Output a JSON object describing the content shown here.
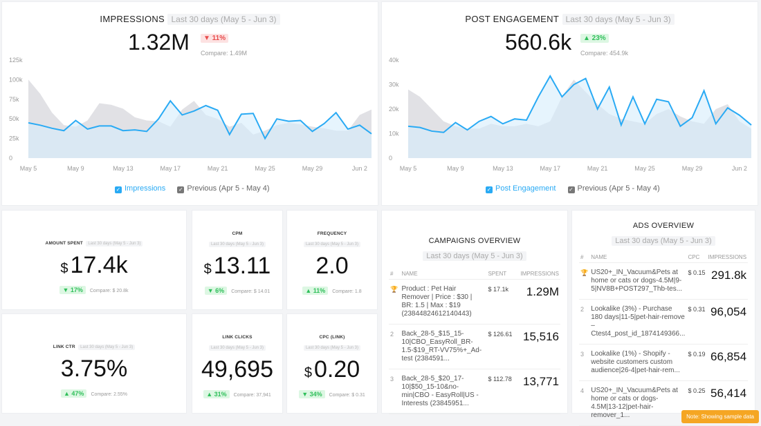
{
  "impressions": {
    "title": "IMPRESSIONS",
    "range": "Last 30 days (May 5 - Jun 3)",
    "value": "1.32M",
    "change": "▼ 11%",
    "compare": "Compare: 1.49M",
    "legend_current": "Impressions",
    "legend_previous": "Previous (Apr 5 - May 4)"
  },
  "engagement": {
    "title": "POST ENGAGEMENT",
    "range": "Last 30 days (May 5 - Jun 3)",
    "value": "560.6k",
    "change": "▲ 23%",
    "compare": "Compare: 454.9k",
    "legend_current": "Post Engagement",
    "legend_previous": "Previous (Apr 5 - May 4)"
  },
  "chart_data": [
    {
      "type": "area",
      "title": "Impressions",
      "ylim": [
        0,
        125000
      ],
      "yticks": [
        "0",
        "25k",
        "50k",
        "75k",
        "100k",
        "125k"
      ],
      "xticks": [
        "May 5",
        "May 9",
        "May 13",
        "May 17",
        "May 21",
        "May 25",
        "May 29",
        "Jun 2"
      ],
      "series": [
        {
          "name": "Impressions",
          "color": "#29aaf4",
          "values": [
            45,
            42,
            38,
            35,
            48,
            37,
            41,
            41,
            35,
            36,
            34,
            50,
            73,
            55,
            60,
            67,
            61,
            30,
            56,
            57,
            25,
            50,
            47,
            48,
            34,
            44,
            58,
            37,
            42,
            31
          ]
        },
        {
          "name": "Previous (Apr 5 - May 4)",
          "color": "#d8d8dc",
          "values": [
            100,
            82,
            58,
            42,
            40,
            48,
            70,
            68,
            63,
            52,
            48,
            47,
            40,
            62,
            73,
            55,
            50,
            40,
            45,
            30,
            35,
            42,
            45,
            43,
            40,
            38,
            35,
            35,
            55,
            62
          ]
        }
      ]
    },
    {
      "type": "area",
      "title": "Post Engagement",
      "ylim": [
        0,
        40000
      ],
      "yticks": [
        "0",
        "10k",
        "20k",
        "30k",
        "40k"
      ],
      "xticks": [
        "May 5",
        "May 9",
        "May 13",
        "May 17",
        "May 21",
        "May 25",
        "May 29",
        "Jun 2"
      ],
      "series": [
        {
          "name": "Post Engagement",
          "color": "#29aaf4",
          "values": [
            13,
            12.5,
            11,
            10.5,
            14.5,
            11.5,
            15,
            17,
            14,
            16,
            15.5,
            25,
            33.5,
            25,
            30,
            32.5,
            20,
            29,
            13.5,
            25,
            14,
            24,
            23,
            13,
            16.5,
            27.5,
            14,
            20.5,
            17.5,
            13.5
          ]
        },
        {
          "name": "Previous (Apr 5 - May 4)",
          "color": "#d8d8dc",
          "values": [
            28,
            25,
            20,
            15,
            13,
            12,
            12,
            14,
            13,
            13,
            14,
            13,
            15,
            25,
            32,
            27,
            22,
            18,
            16,
            15,
            14,
            18,
            20,
            17,
            15,
            14,
            20,
            22,
            15,
            12
          ]
        }
      ]
    }
  ],
  "kpis": [
    {
      "label": "AMOUNT SPENT",
      "range": "Last 30 days (May 5 - Jun 3)",
      "cur": "$",
      "value": "17.4k",
      "change": "▼ 17%",
      "compare": "Compare: $ 20.8k"
    },
    {
      "label": "CPM",
      "range": "Last 30 days (May 5 - Jun 3)",
      "cur": "$",
      "value": "13.11",
      "change": "▼ 6%",
      "compare": "Compare: $ 14.01"
    },
    {
      "label": "FREQUENCY",
      "range": "Last 30 days (May 5 - Jun 3)",
      "cur": "",
      "value": "2.0",
      "change": "▲ 11%",
      "compare": "Compare: 1.8"
    },
    {
      "label": "LINK CTR",
      "range": "Last 30 days (May 5 - Jun 3)",
      "cur": "",
      "value": "3.75%",
      "change": "▲ 47%",
      "compare": "Compare: 2.55%"
    },
    {
      "label": "LINK CLICKS",
      "range": "Last 30 days (May 5 - Jun 3)",
      "cur": "",
      "value": "49,695",
      "change": "▲ 31%",
      "compare": "Compare: 37,941"
    },
    {
      "label": "CPC (LINK)",
      "range": "Last 30 days (May 5 - Jun 3)",
      "cur": "$",
      "value": "0.20",
      "change": "▼ 34%",
      "compare": "Compare: $ 0.31"
    }
  ],
  "campaigns": {
    "title": "CAMPAIGNS OVERVIEW",
    "range": "Last 30 days (May 5 - Jun 3)",
    "headers": [
      "#",
      "NAME",
      "SPENT",
      "IMPRESSIONS"
    ],
    "rows": [
      {
        "rank": "🏆",
        "name": "Product : Pet Hair Remover | Price : $30 | BR: 1.5 | Max : $19 (23844824612140443)",
        "spent": "$ 17.1k",
        "impressions": "1.29M"
      },
      {
        "rank": "2",
        "name": "Back_28-5_$15_15-10|CBO_EasyRoll_BR-1.5-$19_RT-VV75%+_Ad-test (2384591...",
        "spent": "$ 126.61",
        "impressions": "15,516"
      },
      {
        "rank": "3",
        "name": "Back_28-5_$20_17-10|$50_15-10&no-min|CBO - EasyRoll|US - Interests (23845951...",
        "spent": "$ 112.78",
        "impressions": "13,771"
      }
    ]
  },
  "ads": {
    "title": "ADS OVERVIEW",
    "range": "Last 30 days (May 5 - Jun 3)",
    "headers": [
      "#",
      "NAME",
      "CPC",
      "IMPRESSIONS"
    ],
    "rows": [
      {
        "rank": "🏆",
        "name": "US20+_IN_Vacuum&Pets at home or cats or dogs-4.5M|9-5|NV8B+POST297_Thb-tes...",
        "cpc": "$ 0.15",
        "impressions": "291.8k"
      },
      {
        "rank": "2",
        "name": "Lookalike (3%) - Purchase 180 days|11-5|pet-hair-remove – Ctest4_post_id_1874149366...",
        "cpc": "$ 0.31",
        "impressions": "96,054"
      },
      {
        "rank": "3",
        "name": "Lookalike (1%) - Shopify - website customers custom audience|26-4|pet-hair-rem...",
        "cpc": "$ 0.19",
        "impressions": "66,854"
      },
      {
        "rank": "4",
        "name": "US20+_IN_Vacuum&Pets at home or cats or dogs-4.5M|13-12|pet-hair-remover_1...",
        "cpc": "$ 0.25",
        "impressions": "56,414"
      }
    ]
  },
  "note": "Note: Showing sample data"
}
